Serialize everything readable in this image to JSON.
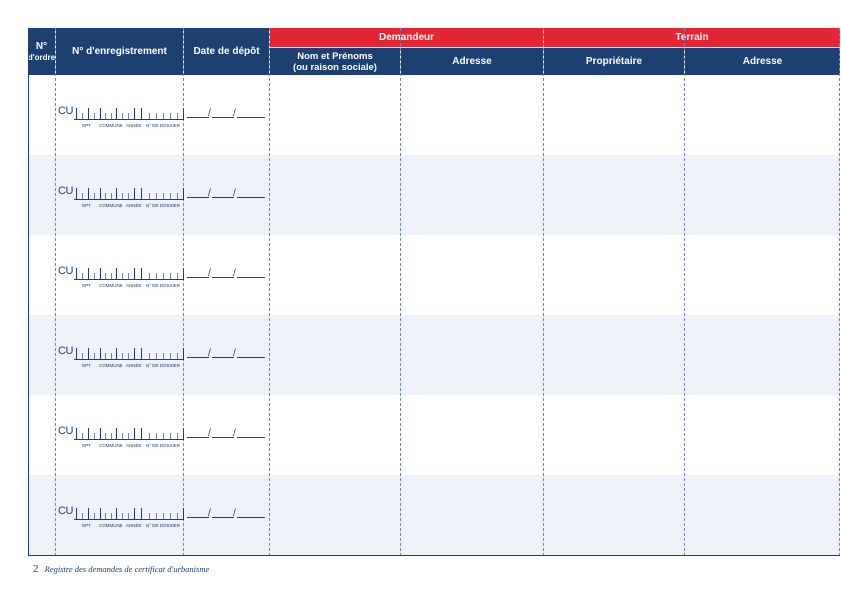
{
  "header": {
    "col_order": "N°\nd'ordre",
    "col_order_line1": "N°",
    "col_order_line2": "d'ordre",
    "col_registration": "N° d'enregistrement",
    "col_date": "Date de dépôt",
    "group_applicant": "Demandeur",
    "group_land": "Terrain",
    "col_name_line1": "Nom et Prénoms",
    "col_name_line2": "(ou raison sociale)",
    "col_applicant_address": "Adresse",
    "col_owner": "Propriétaire",
    "col_land_address": "Adresse"
  },
  "registration_field": {
    "prefix": "CU",
    "label_dept": "Dpt",
    "label_commune": "Commune",
    "label_year": "Année",
    "label_file": "N° de dossier"
  },
  "date_field": {
    "separator": "/"
  },
  "rows": 6,
  "footer": {
    "page_number": "2",
    "title": "Registre des demandes de certificat d'urbanisme"
  },
  "colors": {
    "navy": "#1d3f72",
    "red": "#e32636",
    "alt_row": "#eef1f8"
  }
}
